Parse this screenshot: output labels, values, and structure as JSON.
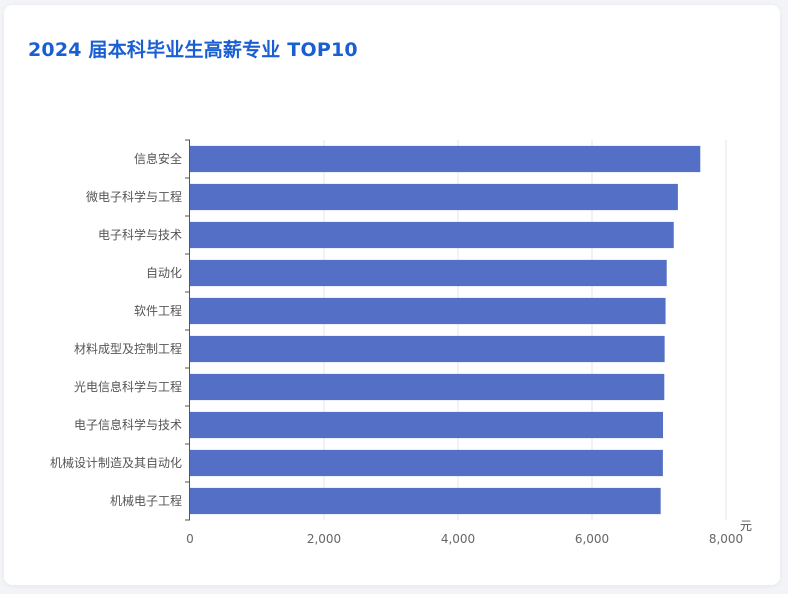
{
  "title": "2024 届本科毕业生高薪专业 TOP10",
  "chart_data": {
    "type": "bar",
    "orientation": "horizontal",
    "categories": [
      "信息安全",
      "微电子科学与工程",
      "电子科学与技术",
      "自动化",
      "软件工程",
      "材料成型及控制工程",
      "光电信息科学与工程",
      "电子信息科学与技术",
      "机械设计制造及其自动化",
      "机械电子工程"
    ],
    "values": [
      7616,
      7282,
      7220,
      7115,
      7098,
      7084,
      7079,
      7060,
      7058,
      7025
    ],
    "x_unit": "元",
    "xlim": [
      0,
      8000
    ],
    "x_ticks": [
      0,
      2000,
      4000,
      6000,
      8000
    ],
    "x_tick_labels": [
      "0",
      "2,000",
      "4,000",
      "6,000",
      "8,000"
    ],
    "bar_color": "#5470c6",
    "grid": true
  }
}
